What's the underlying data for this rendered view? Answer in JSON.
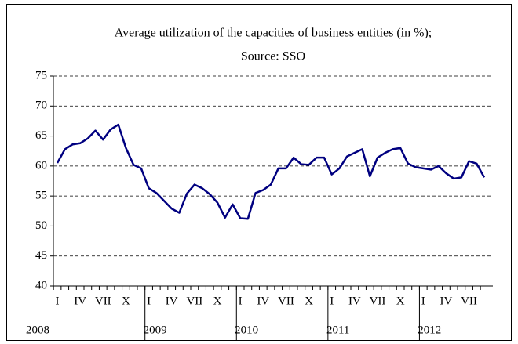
{
  "chart_data": {
    "type": "line",
    "title": "Average utilization of the capacities of business entities (in %);",
    "subtitle": "Source: SSO",
    "categories": [
      "I",
      null,
      null,
      "IV",
      null,
      null,
      "VII",
      null,
      null,
      "X",
      null,
      null,
      "I",
      null,
      null,
      "IV",
      null,
      null,
      "VII",
      null,
      null,
      "X",
      null,
      null,
      "I",
      null,
      null,
      "IV",
      null,
      null,
      "VII",
      null,
      null,
      "X",
      null,
      null,
      "I",
      null,
      null,
      "IV",
      null,
      null,
      "VII",
      null,
      null,
      "X",
      null,
      null,
      "I",
      null,
      null,
      "IV",
      null,
      null,
      "VII",
      null,
      null
    ],
    "year_labels": [
      "2008",
      "2009",
      "2010",
      "2011",
      "2012"
    ],
    "series": [
      {
        "name": "Average utilization",
        "color": "#000080",
        "values": [
          60.5,
          62.8,
          63.6,
          63.8,
          64.6,
          65.9,
          64.4,
          66.1,
          66.9,
          63.0,
          60.2,
          59.6,
          56.3,
          55.5,
          54.2,
          52.9,
          52.2,
          55.4,
          56.9,
          56.3,
          55.3,
          53.9,
          51.4,
          53.6,
          51.3,
          51.2,
          55.5,
          56.0,
          56.9,
          59.6,
          59.6,
          61.4,
          60.3,
          60.2,
          61.4,
          61.4,
          58.6,
          59.6,
          61.6,
          62.2,
          62.8,
          58.3,
          61.4,
          62.2,
          62.8,
          63.0,
          60.4,
          59.8,
          59.6,
          59.4,
          60.0,
          58.8,
          57.9,
          58.1,
          60.8,
          60.4,
          58.1
        ]
      }
    ],
    "ylim": [
      40,
      75
    ],
    "yticks": [
      40,
      45,
      50,
      55,
      60,
      65,
      70,
      75
    ],
    "grid": true
  }
}
